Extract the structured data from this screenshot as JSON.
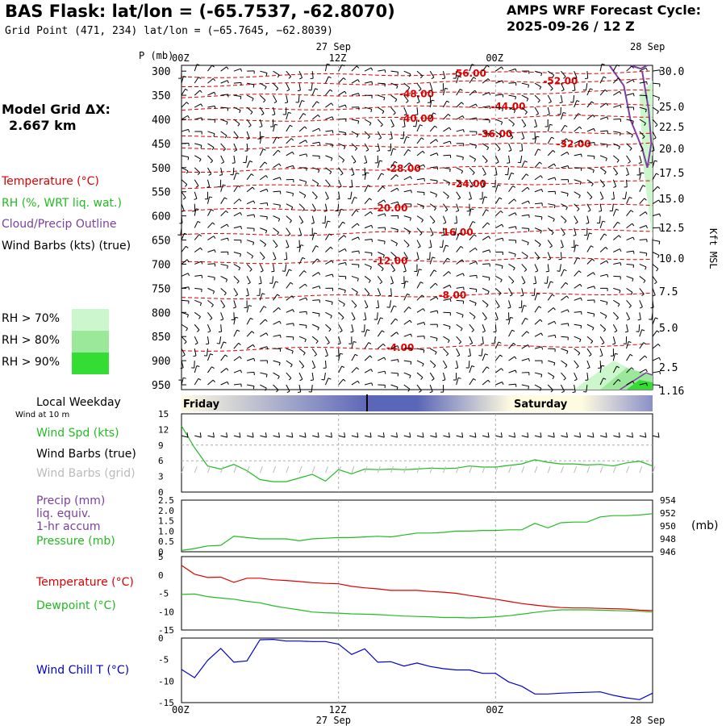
{
  "header": {
    "title": "BAS Flask:  lat/lon = (-65.7537, -62.8070)",
    "subtitle": "Grid Point (471, 234) lat/lon = (−65.7645, −62.8039)",
    "cycle_line1": "AMPS WRF Forecast Cycle:",
    "cycle_line2": "2025-09-26 / 12  Z",
    "grid_dx_line1": "Model Grid ΔX:",
    "grid_dx_line2": "2.667 km"
  },
  "legend": {
    "temperature": "Temperature (°C)",
    "rh": "RH (%, WRT liq. wat.)",
    "cloud": "Cloud/Precip Outline",
    "wind": "Wind Barbs (kts) (true)",
    "rh70": "RH > 70%",
    "rh80": "RH > 80%",
    "rh90": "RH > 90%",
    "colors": {
      "rh70": "#ccf7cc",
      "rh80": "#9be89b",
      "rh90": "#33dd33",
      "temp": "#dd0000",
      "cloud": "#7b3fa0"
    }
  },
  "time_axis": {
    "top_dates": [
      "27 Sep",
      "28 Sep"
    ],
    "ticks": [
      "00Z",
      "12Z",
      "00Z"
    ],
    "bottom_dates": [
      "27 Sep",
      "28 Sep"
    ]
  },
  "weekday": {
    "label": "Local Weekday",
    "days": [
      "Friday",
      "Saturday"
    ]
  },
  "wind10": {
    "label": "Wind at 10 m",
    "speed_label": "Wind Spd (kts)",
    "barbs_true": "Wind Barbs (true)",
    "barbs_grid": "Wind Barbs (grid)"
  },
  "precip": {
    "label1": "Precip (mm)",
    "label2": "liq. equiv.",
    "label3": "1-hr accum",
    "pressure_label": "Pressure (mb)",
    "mb_unit": "(mb)"
  },
  "temp_panel": {
    "temp_label": "Temperature (°C)",
    "dew_label": "Dewpoint (°C)"
  },
  "chill_panel": {
    "label": "Wind Chill T (°C)"
  },
  "chart_data": [
    {
      "type": "line",
      "panel": "cross-section",
      "y_axis_title": "P (mb)",
      "y2_axis_title": "Kft MSL",
      "pressure_levels": [
        300,
        350,
        400,
        450,
        500,
        550,
        600,
        650,
        700,
        750,
        800,
        850,
        900,
        950
      ],
      "kft_labels": [
        "30.0",
        "25.0",
        "22.5",
        "20.0",
        "17.5",
        "15.0",
        "12.5",
        "10.0",
        "7.5",
        "5.0",
        "2.5",
        "1.16"
      ],
      "kft_pressures": [
        288,
        350,
        377,
        404,
        433,
        465,
        501,
        540,
        579,
        624,
        676,
        704
      ],
      "isotherm_labels": [
        {
          "text": "-56.00",
          "hour": 22,
          "p": 305
        },
        {
          "text": "-52.00",
          "hour": 29,
          "p": 321
        },
        {
          "text": "-48.00",
          "hour": 18,
          "p": 347
        },
        {
          "text": "-44.00",
          "hour": 25,
          "p": 373
        },
        {
          "text": "-40.00",
          "hour": 18,
          "p": 398
        },
        {
          "text": "-36.00",
          "hour": 24,
          "p": 430
        },
        {
          "text": "-32.00",
          "hour": 30,
          "p": 451
        },
        {
          "text": "-28.00",
          "hour": 17,
          "p": 502
        },
        {
          "text": "-24.00",
          "hour": 22,
          "p": 534
        },
        {
          "text": "-20.00",
          "hour": 16,
          "p": 584
        },
        {
          "text": "-16.00",
          "hour": 21,
          "p": 634
        },
        {
          "text": "-12.00",
          "hour": 16,
          "p": 693
        },
        {
          "text": "-8.00",
          "hour": 21,
          "p": 764
        },
        {
          "text": "-4.00",
          "hour": 17,
          "p": 873
        }
      ]
    },
    {
      "type": "line",
      "panel": "wind",
      "ylim": [
        0,
        15
      ],
      "yticks": [
        0,
        3,
        6,
        9,
        12,
        15
      ],
      "series": [
        {
          "name": "Wind Spd (kts)",
          "color": "#22bb22",
          "x": [
            0,
            1,
            2,
            3,
            4,
            5,
            6,
            7,
            8,
            9,
            10,
            11,
            12,
            13,
            14,
            15,
            16,
            17,
            18,
            19,
            20,
            21,
            22,
            23,
            24,
            25,
            26,
            27,
            28,
            29,
            30,
            31,
            32,
            33,
            34,
            35,
            36
          ],
          "values": [
            12.7,
            8.5,
            5.0,
            4.4,
            5.3,
            4.1,
            2.4,
            2.0,
            2.0,
            2.7,
            3.4,
            2.1,
            4.3,
            3.5,
            4.4,
            4.3,
            4.4,
            4.3,
            4.4,
            4.6,
            4.5,
            4.6,
            5.0,
            4.8,
            4.8,
            5.1,
            5.4,
            6.2,
            5.7,
            5.4,
            5.4,
            5.2,
            5.3,
            5.0,
            5.6,
            5.9,
            5.0
          ]
        }
      ]
    },
    {
      "type": "line",
      "panel": "precip-pressure",
      "ylim": [
        0,
        2.5
      ],
      "yticks": [
        "0",
        "0.5",
        "1.0",
        "1.5",
        "2.0",
        "2.5"
      ],
      "y2ticks": [
        "954",
        "952",
        "950",
        "948",
        "946"
      ],
      "series": [
        {
          "name": "Pressure (mb)",
          "color": "#22bb22",
          "x": [
            0,
            1,
            2,
            3,
            4,
            5,
            6,
            7,
            8,
            9,
            10,
            11,
            12,
            13,
            14,
            15,
            16,
            17,
            18,
            19,
            20,
            21,
            22,
            23,
            24,
            25,
            26,
            27,
            28,
            29,
            30,
            31,
            32,
            33,
            34,
            35,
            36
          ],
          "values": [
            946.2,
            946.5,
            946.9,
            947.0,
            948.4,
            948.2,
            948.0,
            948.0,
            948.0,
            947.7,
            948.0,
            948.1,
            948.2,
            948.2,
            948.3,
            948.4,
            948.3,
            948.6,
            948.9,
            948.9,
            949.0,
            949.2,
            949.2,
            949.3,
            949.3,
            949.4,
            949.4,
            950.4,
            949.7,
            950.5,
            950.6,
            950.6,
            951.4,
            951.6,
            951.6,
            951.7,
            951.9
          ]
        }
      ]
    },
    {
      "type": "line",
      "panel": "temperature",
      "ylim": [
        -15,
        5
      ],
      "yticks": [
        5,
        0,
        -5,
        -10,
        -15
      ],
      "series": [
        {
          "name": "Temperature (°C)",
          "color": "#dd0000",
          "x": [
            0,
            1,
            2,
            3,
            4,
            5,
            6,
            7,
            8,
            9,
            10,
            11,
            12,
            13,
            14,
            15,
            16,
            17,
            18,
            19,
            20,
            21,
            22,
            23,
            24,
            25,
            26,
            27,
            28,
            29,
            30,
            31,
            32,
            33,
            34,
            35,
            36
          ],
          "values": [
            2.6,
            0.2,
            -0.7,
            -0.6,
            -2.0,
            -0.9,
            -0.9,
            -1.3,
            -1.5,
            -1.8,
            -2.1,
            -2.3,
            -2.4,
            -3.1,
            -3.5,
            -3.8,
            -4.2,
            -4.2,
            -4.2,
            -4.5,
            -4.7,
            -5.0,
            -5.6,
            -6.1,
            -6.6,
            -7.2,
            -7.8,
            -8.2,
            -8.6,
            -8.9,
            -9.0,
            -9.0,
            -9.1,
            -9.2,
            -9.3,
            -9.6,
            -9.7
          ]
        },
        {
          "name": "Dewpoint (°C)",
          "color": "#22bb22",
          "x": [
            0,
            1,
            2,
            3,
            4,
            5,
            6,
            7,
            8,
            9,
            10,
            11,
            12,
            13,
            14,
            15,
            16,
            17,
            18,
            19,
            20,
            21,
            22,
            23,
            24,
            25,
            26,
            27,
            28,
            29,
            30,
            31,
            32,
            33,
            34,
            35,
            36
          ],
          "values": [
            -5.3,
            -5.2,
            -5.9,
            -6.3,
            -6.6,
            -7.2,
            -7.6,
            -8.4,
            -9.0,
            -9.5,
            -10.1,
            -10.3,
            -10.4,
            -10.6,
            -10.7,
            -10.8,
            -11.0,
            -11.2,
            -11.3,
            -11.4,
            -11.6,
            -11.6,
            -11.7,
            -11.6,
            -11.4,
            -11.1,
            -10.7,
            -10.2,
            -9.8,
            -9.5,
            -9.5,
            -9.5,
            -9.6,
            -9.7,
            -9.8,
            -9.9,
            -10.1
          ]
        }
      ]
    },
    {
      "type": "line",
      "panel": "wind-chill",
      "ylim": [
        -15,
        0
      ],
      "yticks": [
        0,
        -5,
        -10,
        -15
      ],
      "series": [
        {
          "name": "Wind Chill T (°C)",
          "color": "#0000cc",
          "x": [
            0,
            1,
            2,
            3,
            4,
            5,
            6,
            7,
            8,
            9,
            10,
            11,
            12,
            13,
            14,
            15,
            16,
            17,
            18,
            19,
            20,
            21,
            22,
            23,
            24,
            25,
            26,
            27,
            28,
            29,
            30,
            31,
            32,
            33,
            34,
            35,
            36
          ],
          "values": [
            -7.3,
            -9.2,
            -5.2,
            -2.4,
            -5.6,
            -5.3,
            -0.4,
            -0.3,
            -0.7,
            -0.7,
            -0.8,
            -0.8,
            -1.4,
            -3.8,
            -2.5,
            -5.6,
            -5.5,
            -6.5,
            -5.8,
            -6.6,
            -7.1,
            -7.4,
            -7.4,
            -8.2,
            -8.2,
            -10.2,
            -11.2,
            -13.0,
            -13.0,
            -12.8,
            -12.7,
            -12.6,
            -12.5,
            -13.3,
            -13.9,
            -14.3,
            -12.8
          ]
        }
      ]
    }
  ]
}
